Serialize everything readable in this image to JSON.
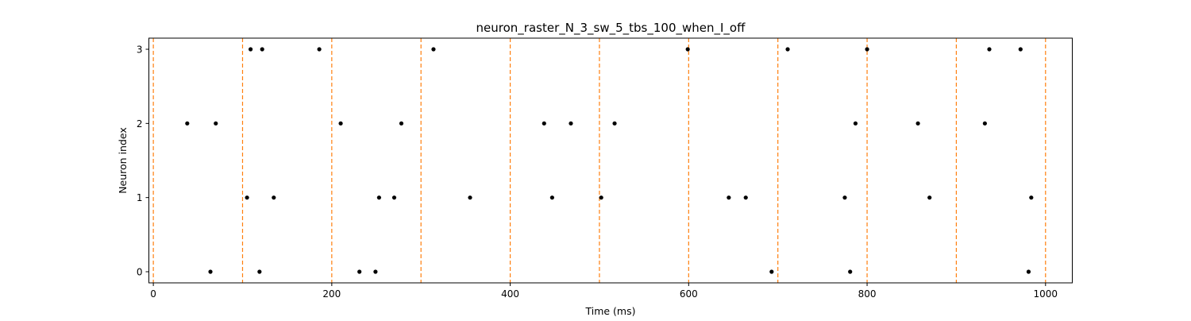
{
  "chart_data": {
    "type": "scatter",
    "title": "neuron_raster_N_3_sw_5_tbs_100_when_I_off",
    "xlabel": "Time (ms)",
    "ylabel": "Neuron index",
    "xlim": [
      -5,
      1030
    ],
    "ylim": [
      -0.15,
      3.15
    ],
    "xticks": [
      0,
      200,
      400,
      600,
      800,
      1000
    ],
    "yticks": [
      0,
      1,
      2,
      3
    ],
    "grid": false,
    "marker_color": "#000000",
    "vline_color": "#ff7f0e",
    "vlines": [
      0,
      100,
      200,
      300,
      400,
      500,
      600,
      700,
      800,
      900,
      1000
    ],
    "series": [
      {
        "neuron": 0,
        "spike_times": [
          64,
          119,
          231,
          249,
          693,
          781,
          981
        ]
      },
      {
        "neuron": 1,
        "spike_times": [
          105,
          135,
          253,
          270,
          355,
          447,
          502,
          645,
          664,
          775,
          870,
          984
        ]
      },
      {
        "neuron": 2,
        "spike_times": [
          38,
          70,
          210,
          278,
          438,
          468,
          517,
          857,
          787,
          932
        ]
      },
      {
        "neuron": 3,
        "spike_times": [
          109,
          122,
          186,
          314,
          599,
          711,
          800,
          937,
          972
        ]
      }
    ]
  }
}
